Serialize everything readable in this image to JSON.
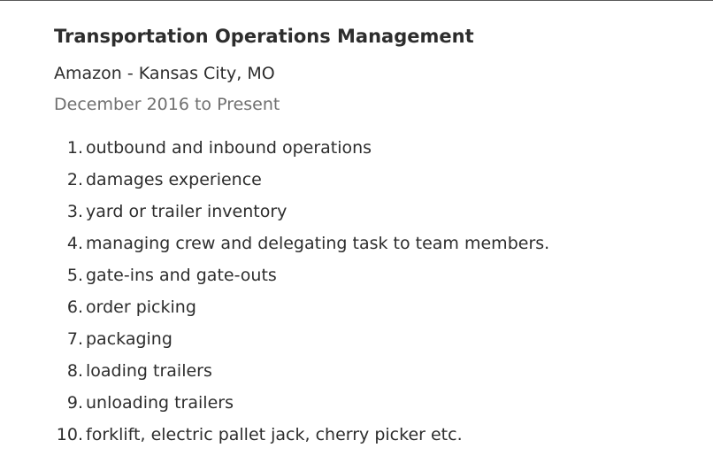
{
  "job": {
    "title": "Transportation Operations Management",
    "company": "Amazon - Kansas City, MO",
    "dates": "December 2016 to Present",
    "duties": [
      {
        "num": "1.",
        "text": "outbound and inbound operations"
      },
      {
        "num": "2.",
        "text": "damages experience"
      },
      {
        "num": "3.",
        "text": "yard or trailer inventory"
      },
      {
        "num": "4.",
        "text": "managing crew and delegating task to team members."
      },
      {
        "num": "5.",
        "text": "gate-ins and gate-outs"
      },
      {
        "num": "6.",
        "text": "order picking"
      },
      {
        "num": "7.",
        "text": "packaging"
      },
      {
        "num": "8.",
        "text": "loading trailers"
      },
      {
        "num": "9.",
        "text": "unloading trailers"
      },
      {
        "num": "10.",
        "text": "forklift, electric pallet jack, cherry picker etc."
      }
    ]
  }
}
